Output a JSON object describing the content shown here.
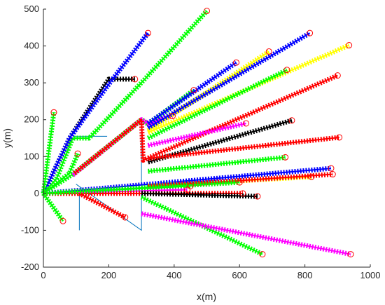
{
  "chart_data": {
    "type": "line",
    "title": "",
    "xlabel": "x(m)",
    "ylabel": "y(m)",
    "xlim": [
      0,
      1000
    ],
    "ylim": [
      -200,
      500
    ],
    "xticks": [
      0,
      200,
      400,
      600,
      800,
      1000
    ],
    "yticks": [
      -200,
      -100,
      0,
      100,
      200,
      300,
      400,
      500
    ],
    "grid": false,
    "legend": false,
    "colors": {
      "red": "#ff0000",
      "green": "#00ff00",
      "blue": "#0000ff",
      "black": "#000000",
      "yellow": "#ffff00",
      "magenta": "#ff00ff",
      "marker": "#ff0000",
      "guide": "#0072bd",
      "axis": "#262626"
    },
    "guide_lines": [
      {
        "points": [
          [
            95,
            55
          ],
          [
            300,
            200
          ],
          [
            300,
            -100
          ],
          [
            100,
            25
          ]
        ]
      },
      {
        "points": [
          [
            90,
            155
          ],
          [
            195,
            155
          ]
        ]
      },
      {
        "points": [
          [
            200,
            310
          ],
          [
            280,
            310
          ]
        ]
      },
      {
        "points": [
          [
            110,
            0
          ],
          [
            110,
            -100
          ]
        ]
      }
    ],
    "series": [
      {
        "color": "green",
        "points": [
          [
            0,
            0
          ],
          [
            95,
            55
          ],
          [
            300,
            200
          ],
          [
            320,
            188
          ],
          [
            460,
            280
          ]
        ]
      },
      {
        "color": "magenta",
        "points": [
          [
            90,
            50
          ],
          [
            300,
            200
          ],
          [
            320,
            190
          ],
          [
            395,
            210
          ]
        ]
      },
      {
        "color": "red",
        "points": [
          [
            95,
            55
          ],
          [
            300,
            200
          ],
          [
            305,
            90
          ],
          [
            900,
            320
          ]
        ]
      },
      {
        "color": "green",
        "points": [
          [
            0,
            0
          ],
          [
            40,
            40
          ],
          [
            90,
            150
          ],
          [
            140,
            150
          ],
          [
            310,
            310
          ],
          [
            500,
            495
          ]
        ]
      },
      {
        "color": "black",
        "points": [
          [
            0,
            0
          ],
          [
            80,
            150
          ],
          [
            200,
            310
          ],
          [
            280,
            310
          ]
        ]
      },
      {
        "color": "blue",
        "points": [
          [
            0,
            0
          ],
          [
            80,
            150
          ],
          [
            210,
            308
          ],
          [
            320,
            435
          ]
        ]
      },
      {
        "color": "green",
        "points": [
          [
            0,
            0
          ],
          [
            32,
            220
          ]
        ]
      },
      {
        "color": "green",
        "points": [
          [
            0,
            0
          ],
          [
            60,
            -75
          ]
        ]
      },
      {
        "color": "green",
        "points": [
          [
            0,
            0
          ],
          [
            80,
            55
          ],
          [
            105,
            108
          ]
        ]
      },
      {
        "color": "blue",
        "points": [
          [
            320,
            190
          ],
          [
            590,
            355
          ]
        ]
      },
      {
        "color": "yellow",
        "points": [
          [
            320,
            170
          ],
          [
            690,
            385
          ]
        ]
      },
      {
        "color": "blue",
        "points": [
          [
            320,
            178
          ],
          [
            815,
            435
          ]
        ]
      },
      {
        "color": "yellow",
        "points": [
          [
            320,
            165
          ],
          [
            935,
            402
          ]
        ]
      },
      {
        "color": "green",
        "points": [
          [
            320,
            150
          ],
          [
            745,
            335
          ]
        ]
      },
      {
        "color": "magenta",
        "points": [
          [
            320,
            130
          ],
          [
            620,
            190
          ]
        ]
      },
      {
        "color": "black",
        "points": [
          [
            320,
            85
          ],
          [
            760,
            198
          ]
        ]
      },
      {
        "color": "red",
        "points": [
          [
            320,
            95
          ],
          [
            905,
            152
          ]
        ]
      },
      {
        "color": "green",
        "points": [
          [
            320,
            60
          ],
          [
            740,
            98
          ]
        ]
      },
      {
        "color": "blue",
        "points": [
          [
            0,
            0
          ],
          [
            880,
            68
          ]
        ]
      },
      {
        "color": "yellow",
        "points": [
          [
            320,
            20
          ],
          [
            820,
            45
          ]
        ]
      },
      {
        "color": "red",
        "points": [
          [
            320,
            18
          ],
          [
            885,
            52
          ]
        ]
      },
      {
        "color": "green",
        "points": [
          [
            0,
            0
          ],
          [
            450,
            20
          ]
        ]
      },
      {
        "color": "magenta",
        "points": [
          [
            0,
            0
          ],
          [
            440,
            10
          ]
        ]
      },
      {
        "color": "red",
        "points": [
          [
            0,
            0
          ],
          [
            610,
            0
          ]
        ]
      },
      {
        "color": "black",
        "points": [
          [
            300,
            0
          ],
          [
            655,
            -8
          ]
        ]
      },
      {
        "color": "red",
        "points": [
          [
            110,
            0
          ],
          [
            250,
            -65
          ]
        ]
      },
      {
        "color": "green",
        "points": [
          [
            300,
            -10
          ],
          [
            670,
            -165
          ]
        ]
      },
      {
        "color": "magenta",
        "points": [
          [
            300,
            -55
          ],
          [
            940,
            -165
          ]
        ]
      },
      {
        "color": "green",
        "points": [
          [
            0,
            0
          ],
          [
            600,
            30
          ]
        ]
      }
    ]
  }
}
